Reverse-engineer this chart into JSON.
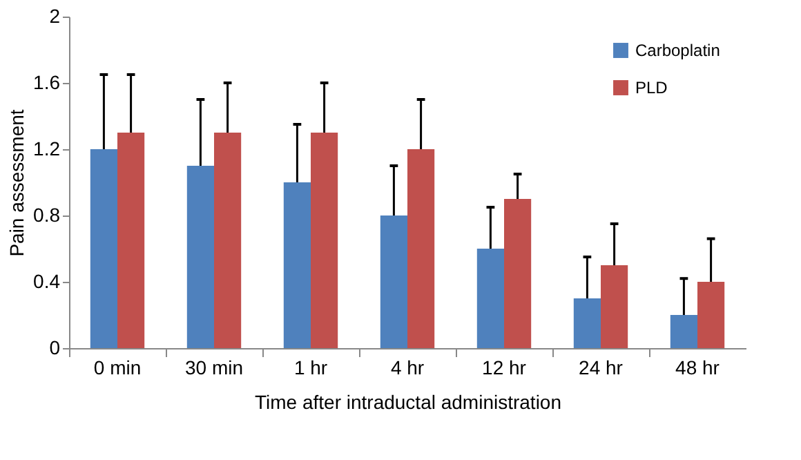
{
  "chart_data": {
    "type": "bar",
    "xlabel": "Time after intraductal administration",
    "ylabel": "Pain assessment",
    "categories": [
      "0 min",
      "30 min",
      "1 hr",
      "4 hr",
      "12 hr",
      "24 hr",
      "48 hr"
    ],
    "series": [
      {
        "name": "Carboplatin",
        "color": "#4f81bd",
        "values": [
          1.2,
          1.1,
          1.0,
          0.8,
          0.6,
          0.3,
          0.2
        ],
        "errors": [
          [
            1.2,
            1.65
          ],
          [
            1.1,
            1.5
          ],
          [
            1.0,
            1.35
          ],
          [
            0.8,
            1.1
          ],
          [
            0.6,
            0.85
          ],
          [
            0.3,
            0.55
          ],
          [
            0.2,
            0.42
          ]
        ]
      },
      {
        "name": "PLD",
        "color": "#c0504d",
        "values": [
          1.3,
          1.3,
          1.3,
          1.2,
          0.9,
          0.5,
          0.4
        ],
        "errors": [
          [
            1.3,
            1.65
          ],
          [
            1.3,
            1.6
          ],
          [
            1.3,
            1.6
          ],
          [
            1.2,
            1.5
          ],
          [
            0.9,
            1.05
          ],
          [
            0.5,
            0.75
          ],
          [
            0.4,
            0.66
          ]
        ]
      }
    ],
    "ylim": [
      0,
      2
    ],
    "yticks": [
      0,
      0.4,
      0.8,
      1.2,
      1.6,
      2
    ],
    "grid": false,
    "legend": "top right"
  }
}
